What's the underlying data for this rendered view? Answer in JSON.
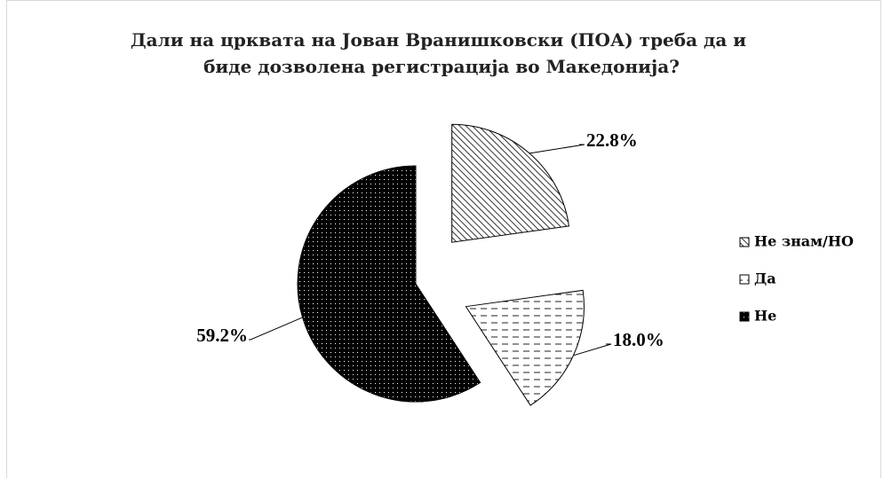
{
  "chart_data": {
    "type": "pie",
    "title": "Дали на црквата на Јован Вранишковски (ПОА) треба да и биде дозволена регистрација во Македонија?",
    "title_lines": [
      "Дали на црквата на Јован Вранишковски (ПОА) треба да и",
      "биде дозволена регистрација во Македонија?"
    ],
    "categories": [
      "Не знам/НО",
      "Да",
      "Не"
    ],
    "values": [
      22.8,
      18.0,
      59.2
    ],
    "value_labels": [
      "22.8%",
      "18.0%",
      "59.2%"
    ],
    "legend": "right"
  }
}
